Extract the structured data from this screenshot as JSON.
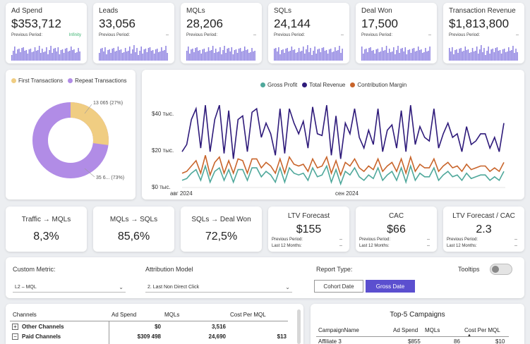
{
  "kpis": [
    {
      "label": "Ad Spend",
      "value": "$353,712",
      "prev_label": "Previous Period:",
      "prev_value": "Infinity",
      "prev_color": "#3cb371"
    },
    {
      "label": "Leads",
      "value": "33,056",
      "prev_label": "Previous Period:",
      "prev_value": "--",
      "prev_color": "#444444"
    },
    {
      "label": "MQLs",
      "value": "28,206",
      "prev_label": "Previous Period:",
      "prev_value": "--",
      "prev_color": "#444444"
    },
    {
      "label": "SQLs",
      "value": "24,144",
      "prev_label": "Previous Period:",
      "prev_value": "--",
      "prev_color": "#444444"
    },
    {
      "label": "Deal Won",
      "value": "17,500",
      "prev_label": "Previous Period:",
      "prev_value": "--",
      "prev_color": "#444444"
    },
    {
      "label": "Transaction Revenue",
      "value": "$1,813,800",
      "prev_label": "Previous Period:",
      "prev_value": "--",
      "prev_color": "#444444"
    }
  ],
  "colors": {
    "spark": "#8b7fe0",
    "first": "#f0cd82",
    "repeat": "#b18ce6",
    "gross": "#4fa89b",
    "total": "#2e1a7a",
    "contribution": "#c8642a",
    "accent": "#5b4fcf"
  },
  "donut": {
    "legend": [
      "First Transactions",
      "Repeat Transactions"
    ],
    "first_label": "13 065 (27%)",
    "repeat_label": "35 6... (73%)",
    "first_pct": 27
  },
  "line_chart": {
    "legend": [
      "Gross Profit",
      "Total Revenue",
      "Contribution Margin"
    ],
    "y_ticks": [
      "$40 тыс.",
      "$20 тыс.",
      "$0 тыс."
    ],
    "x_ticks": [
      "авг 2024",
      "сен 2024"
    ]
  },
  "chart_data": {
    "type": "line",
    "ylim": [
      0,
      50000
    ],
    "series": [
      {
        "name": "Total Revenue",
        "values": [
          20000,
          24000,
          38000,
          44000,
          22000,
          46000,
          20000,
          38000,
          46000,
          19000,
          43000,
          16000,
          38000,
          40000,
          20000,
          42000,
          44000,
          28000,
          36000,
          30000,
          18000,
          44000,
          19000,
          44000,
          36000,
          30000,
          37000,
          22000,
          45000,
          30000,
          29000,
          46000,
          18000,
          40000,
          16000,
          36000,
          30000,
          44000,
          28000,
          22000,
          32000,
          24000,
          44000,
          20000,
          32000,
          35000,
          22000,
          43000,
          20000,
          46000,
          24000,
          34000,
          28000,
          26000,
          44000,
          22000,
          30000,
          36000,
          28000,
          30000,
          20000,
          34000,
          24000,
          26000,
          30000,
          30000,
          22000,
          28000,
          20000,
          36000
        ]
      },
      {
        "name": "Contribution Margin",
        "values": [
          8000,
          9000,
          12000,
          15000,
          8000,
          18000,
          7000,
          14000,
          17000,
          8000,
          15000,
          8000,
          16000,
          15000,
          8000,
          16000,
          16000,
          11000,
          14000,
          12000,
          8000,
          16000,
          8000,
          17000,
          13000,
          12000,
          13000,
          9000,
          16000,
          11000,
          12000,
          17000,
          8000,
          15000,
          7000,
          14000,
          12000,
          16000,
          11000,
          9000,
          12000,
          10000,
          16000,
          9000,
          12000,
          14000,
          9000,
          16000,
          8000,
          17000,
          9000,
          13000,
          11000,
          11000,
          16000,
          9000,
          12000,
          14000,
          11000,
          12000,
          9000,
          13000,
          10000,
          11000,
          12000,
          12000,
          9000,
          11000,
          9000,
          14000
        ]
      },
      {
        "name": "Gross Profit",
        "values": [
          4000,
          5000,
          8000,
          10000,
          4000,
          12000,
          3000,
          9000,
          11000,
          4000,
          10000,
          3000,
          10000,
          10000,
          4000,
          11000,
          11000,
          6000,
          9000,
          7000,
          3000,
          11000,
          3000,
          11000,
          8000,
          7000,
          8000,
          4000,
          11000,
          6000,
          7000,
          12000,
          3000,
          10000,
          2000,
          9000,
          7000,
          11000,
          6000,
          4000,
          7000,
          5000,
          11000,
          4000,
          7000,
          9000,
          4000,
          11000,
          3000,
          12000,
          4000,
          8000,
          6000,
          6000,
          11000,
          4000,
          7000,
          9000,
          6000,
          7000,
          4000,
          8000,
          5000,
          6000,
          7000,
          7000,
          4000,
          6000,
          4000,
          9000
        ]
      }
    ]
  },
  "metrics": [
    {
      "title": "Traffic → MQLs",
      "value": "8,3%"
    },
    {
      "title": "MQLs → SQLs",
      "value": "85,6%"
    },
    {
      "title": "SQLs → Deal Won",
      "value": "72,5%"
    },
    {
      "title": "LTV Forecast",
      "value": "$155",
      "p1": "Previous Period:",
      "p1v": "--",
      "p2": "Last 12 Months:",
      "p2v": "--"
    },
    {
      "title": "CAC",
      "value": "$66",
      "p1": "Previous Period:",
      "p1v": "--",
      "p2": "Last 12 Months:",
      "p2v": "--"
    },
    {
      "title": "LTV Forecast / CAC",
      "value": "2.3",
      "p1": "Previous Period:",
      "p1v": "--",
      "p2": "Last 12 Months:",
      "p2v": "--"
    }
  ],
  "controls": {
    "custom_metric_label": "Custom Metric:",
    "custom_metric_value": "L2 – MQL",
    "attribution_label": "Attribution Model",
    "attribution_value": "2. Last Non Direct Click",
    "report_type_label": "Report Type:",
    "cohort_button": "Cohort Date",
    "gross_button": "Gross Date",
    "tooltips_label": "Tooltips"
  },
  "channels_table": {
    "headers": [
      "Channels",
      "Ad Spend",
      "MQLs",
      "Cost Per MQL"
    ],
    "rows": [
      {
        "expand": "+",
        "name": "Other Channels",
        "ad_spend": "$0",
        "mqls": "3,516",
        "cost": ""
      },
      {
        "expand": "−",
        "name": "Paid Channels",
        "ad_spend": "$309 498",
        "mqls": "24,690",
        "cost": "$13"
      }
    ]
  },
  "campaigns": {
    "title": "Top-5 Campaigns",
    "headers": [
      "CampaignName",
      "Ad Spend",
      "MQLs",
      "Cost Per MQL"
    ],
    "rows": [
      {
        "name": "Affiliate 3",
        "ad_spend": "$855",
        "mqls": "86",
        "cost": "$10"
      }
    ]
  }
}
